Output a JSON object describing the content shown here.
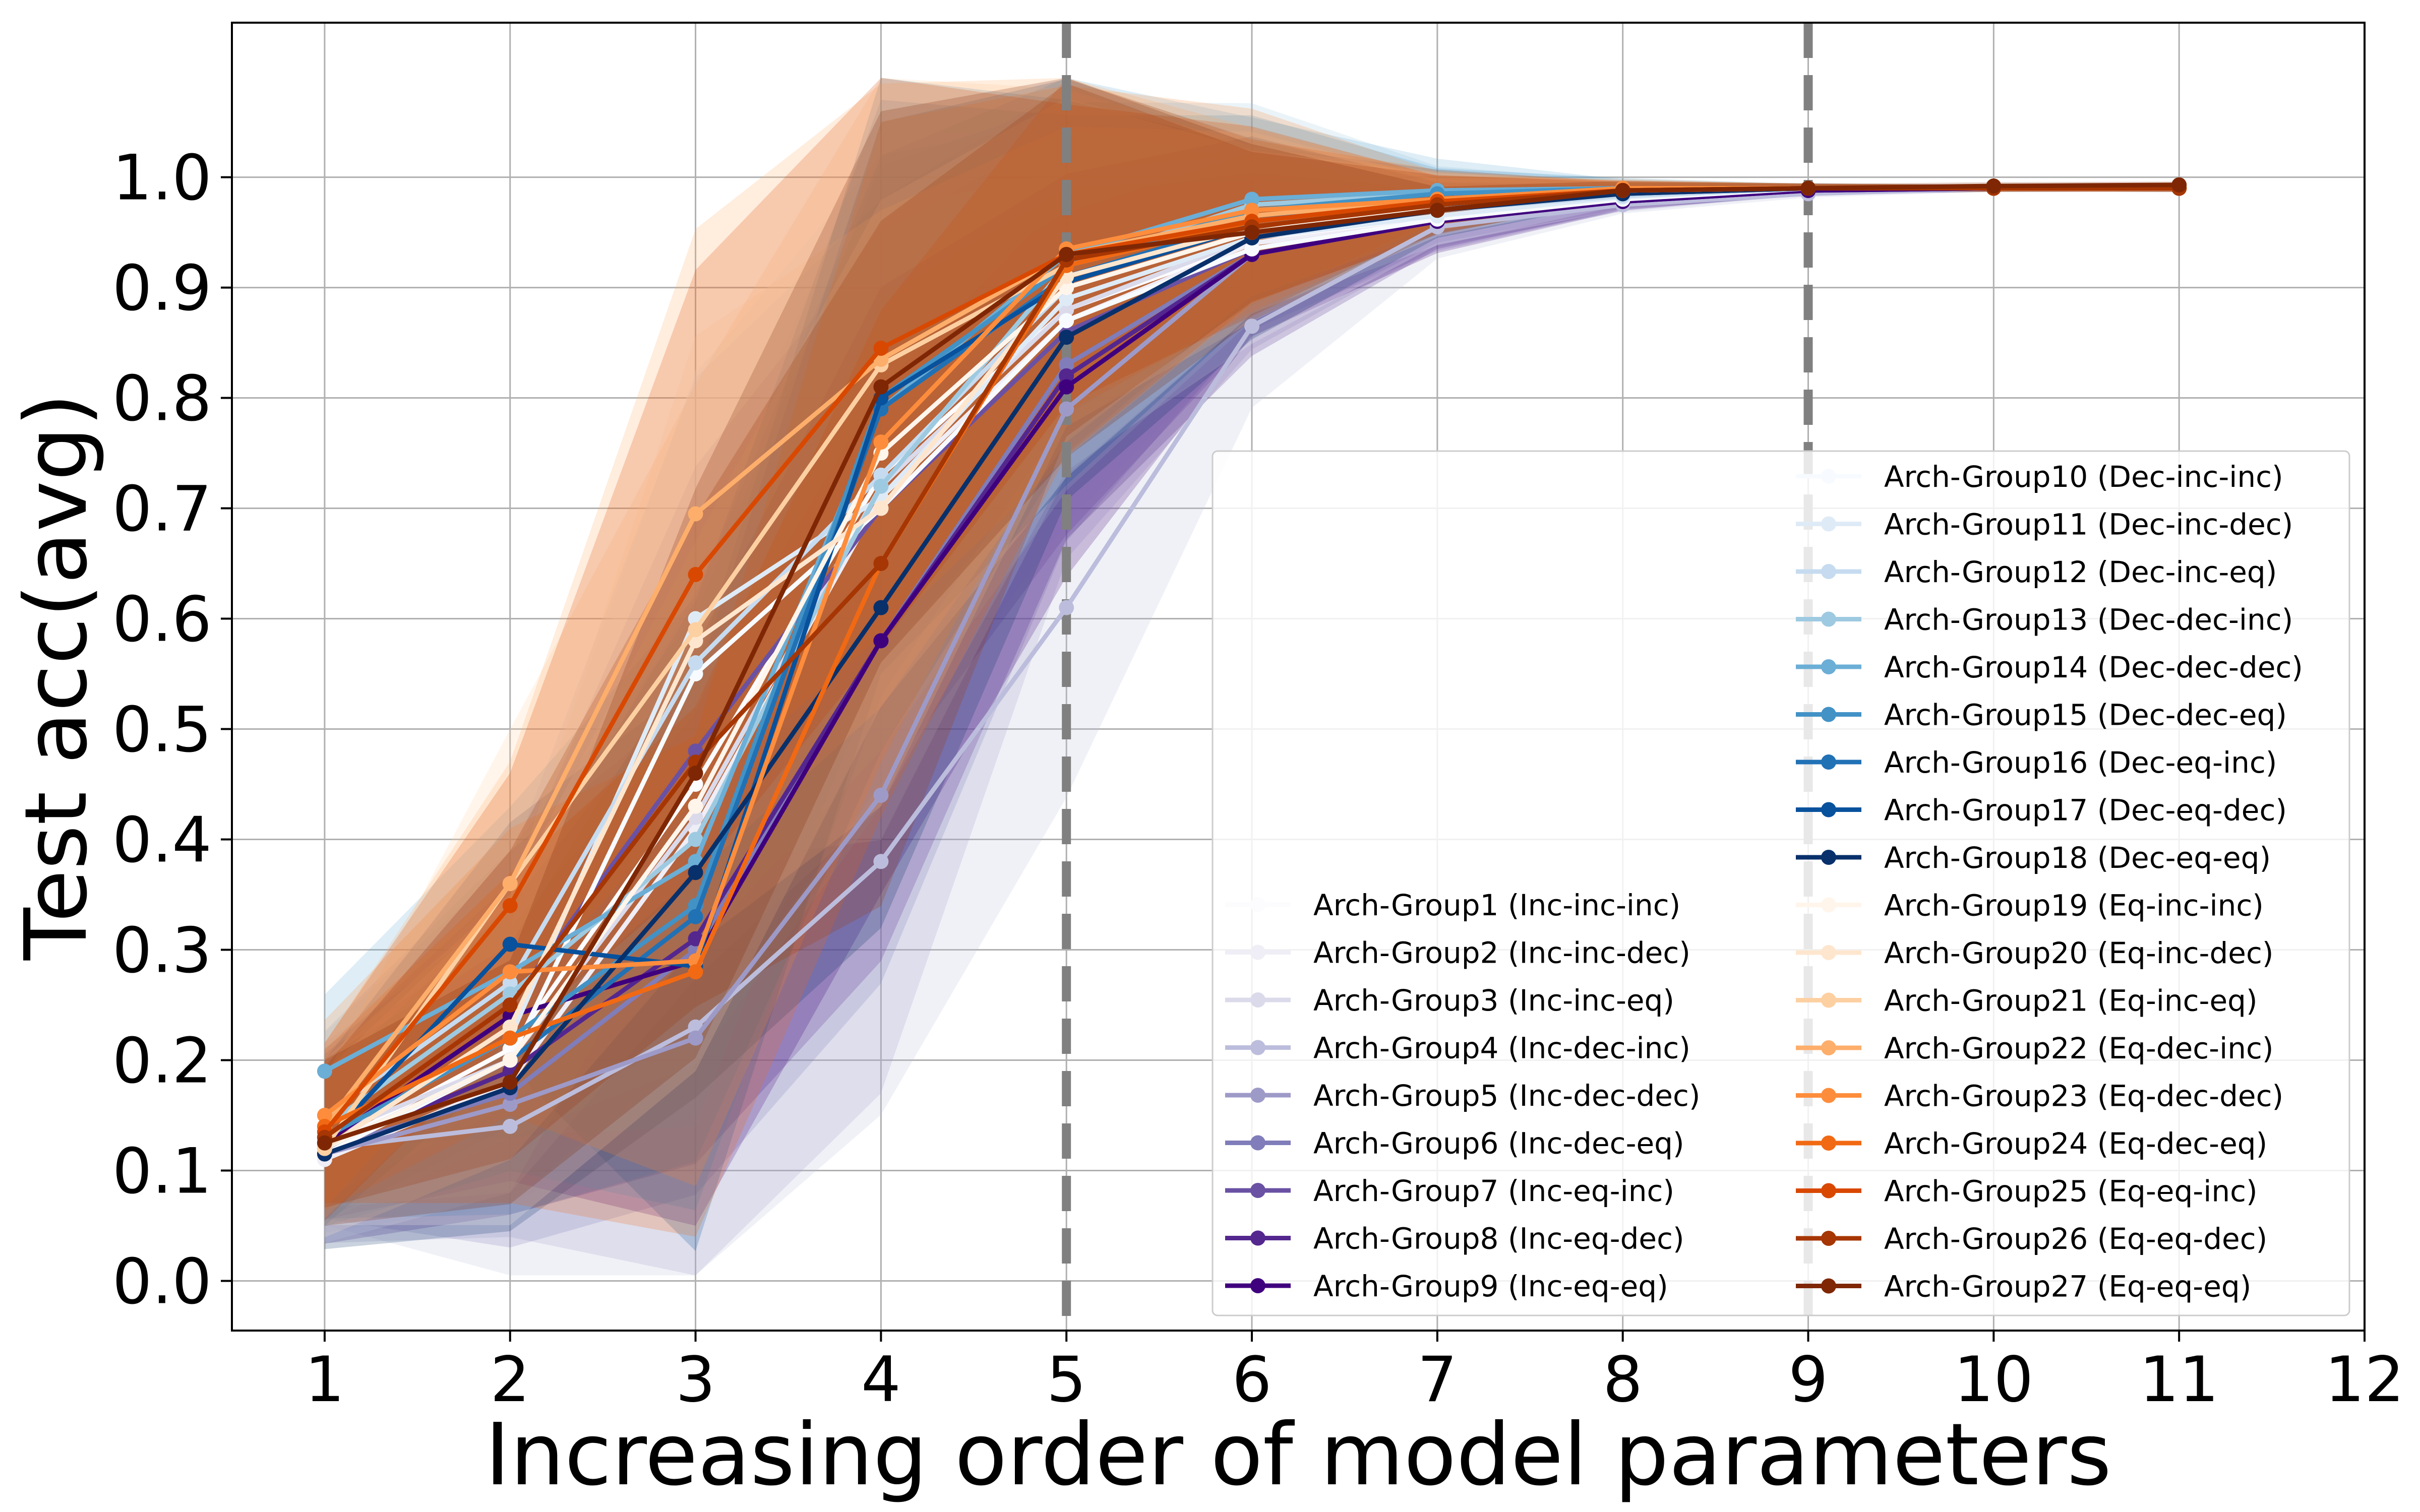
{
  "chart_data": {
    "type": "line",
    "title": "",
    "xlabel": "Increasing order of model parameters",
    "ylabel": "Test acc(avg)",
    "xlim": [
      0.5,
      12
    ],
    "ylim": [
      -0.045,
      1.14
    ],
    "xticks": [
      "1",
      "2",
      "3",
      "4",
      "5",
      "6",
      "7",
      "8",
      "9",
      "10",
      "11",
      "12"
    ],
    "yticks": [
      "0.0",
      "0.1",
      "0.2",
      "0.3",
      "0.4",
      "0.5",
      "0.6",
      "0.7",
      "0.8",
      "0.9",
      "1.0"
    ],
    "grid": true,
    "vlines": [
      5,
      9
    ],
    "legend_position": "lower-right",
    "x": [
      1,
      2,
      3,
      4,
      5,
      6,
      7,
      8,
      9,
      10,
      11
    ],
    "series": [
      {
        "name": "Arch-Group1 (Inc-inc-inc)",
        "color": "#fcfbfd",
        "values": [
          0.12,
          0.21,
          0.45,
          0.73,
          0.88,
          0.94,
          0.965,
          0.98,
          0.99,
          0.99,
          0.99
        ]
      },
      {
        "name": "Arch-Group2 (Inc-inc-dec)",
        "color": "#efedf5",
        "values": [
          0.11,
          0.18,
          0.41,
          0.71,
          0.87,
          0.94,
          0.96,
          0.978,
          0.988,
          0.99,
          0.99
        ]
      },
      {
        "name": "Arch-Group3 (Inc-inc-eq)",
        "color": "#dadaeb",
        "values": [
          0.13,
          0.2,
          0.42,
          0.72,
          0.88,
          0.945,
          0.965,
          0.98,
          0.99,
          0.99,
          0.99
        ]
      },
      {
        "name": "Arch-Group4 (Inc-dec-inc)",
        "color": "#bcbddc",
        "values": [
          0.12,
          0.14,
          0.23,
          0.38,
          0.61,
          0.865,
          0.955,
          0.975,
          0.985,
          0.99,
          0.99
        ]
      },
      {
        "name": "Arch-Group5 (Inc-dec-dec)",
        "color": "#9e9ac8",
        "values": [
          0.115,
          0.16,
          0.22,
          0.44,
          0.79,
          0.93,
          0.96,
          0.978,
          0.988,
          0.99,
          0.99
        ]
      },
      {
        "name": "Arch-Group6 (Inc-dec-eq)",
        "color": "#807dba",
        "values": [
          0.12,
          0.17,
          0.3,
          0.58,
          0.83,
          0.93,
          0.96,
          0.978,
          0.988,
          0.99,
          0.99
        ]
      },
      {
        "name": "Arch-Group7 (Inc-eq-inc)",
        "color": "#6a51a3",
        "values": [
          0.13,
          0.25,
          0.48,
          0.7,
          0.86,
          0.935,
          0.962,
          0.98,
          0.99,
          0.99,
          0.99
        ]
      },
      {
        "name": "Arch-Group8 (Inc-eq-dec)",
        "color": "#54278f",
        "values": [
          0.12,
          0.19,
          0.31,
          0.58,
          0.82,
          0.93,
          0.96,
          0.978,
          0.988,
          0.99,
          0.99
        ]
      },
      {
        "name": "Arch-Group9 (Inc-eq-eq)",
        "color": "#3f007d",
        "values": [
          0.125,
          0.24,
          0.29,
          0.58,
          0.81,
          0.93,
          0.96,
          0.978,
          0.988,
          0.99,
          0.99
        ]
      },
      {
        "name": "Arch-Group10 (Dec-inc-inc)",
        "color": "#f7fbff",
        "values": [
          0.115,
          0.2,
          0.55,
          0.7,
          0.87,
          0.935,
          0.962,
          0.98,
          0.99,
          0.99,
          0.99
        ]
      },
      {
        "name": "Arch-Group11 (Dec-inc-dec)",
        "color": "#deebf7",
        "values": [
          0.13,
          0.22,
          0.6,
          0.71,
          0.89,
          0.945,
          0.965,
          0.982,
          0.99,
          0.99,
          0.99
        ]
      },
      {
        "name": "Arch-Group12 (Dec-inc-eq)",
        "color": "#c6dbef",
        "values": [
          0.15,
          0.27,
          0.56,
          0.73,
          0.9,
          0.95,
          0.97,
          0.983,
          0.99,
          0.99,
          0.99
        ]
      },
      {
        "name": "Arch-Group13 (Dec-dec-inc)",
        "color": "#9ecae1",
        "values": [
          0.14,
          0.26,
          0.4,
          0.72,
          0.92,
          0.975,
          0.985,
          0.99,
          0.99,
          0.99,
          0.99
        ]
      },
      {
        "name": "Arch-Group14 (Dec-dec-dec)",
        "color": "#6baed6",
        "values": [
          0.19,
          0.28,
          0.38,
          0.79,
          0.93,
          0.98,
          0.988,
          0.99,
          0.99,
          0.99,
          0.99
        ]
      },
      {
        "name": "Arch-Group15 (Dec-dec-eq)",
        "color": "#4292c6",
        "values": [
          0.13,
          0.22,
          0.34,
          0.8,
          0.92,
          0.97,
          0.985,
          0.99,
          0.99,
          0.99,
          0.99
        ]
      },
      {
        "name": "Arch-Group16 (Dec-eq-inc)",
        "color": "#2171b5",
        "values": [
          0.12,
          0.2,
          0.33,
          0.79,
          0.91,
          0.96,
          0.98,
          0.988,
          0.99,
          0.99,
          0.99
        ]
      },
      {
        "name": "Arch-Group17 (Dec-eq-dec)",
        "color": "#08519c",
        "values": [
          0.125,
          0.305,
          0.285,
          0.8,
          0.905,
          0.955,
          0.975,
          0.985,
          0.99,
          0.99,
          0.99
        ]
      },
      {
        "name": "Arch-Group18 (Dec-eq-eq)",
        "color": "#08306b",
        "values": [
          0.115,
          0.175,
          0.37,
          0.61,
          0.855,
          0.945,
          0.97,
          0.985,
          0.99,
          0.99,
          0.99
        ]
      },
      {
        "name": "Arch-Group19 (Eq-inc-inc)",
        "color": "#fff5eb",
        "values": [
          0.12,
          0.2,
          0.43,
          0.75,
          0.9,
          0.95,
          0.975,
          0.988,
          0.99,
          0.99,
          0.99
        ]
      },
      {
        "name": "Arch-Group20 (Eq-inc-dec)",
        "color": "#fee6ce",
        "values": [
          0.12,
          0.23,
          0.58,
          0.7,
          0.91,
          0.955,
          0.975,
          0.988,
          0.99,
          0.99,
          0.99
        ]
      },
      {
        "name": "Arch-Group21 (Eq-inc-eq)",
        "color": "#fdd0a2",
        "values": [
          0.12,
          0.36,
          0.59,
          0.83,
          0.92,
          0.96,
          0.978,
          0.988,
          0.99,
          0.99,
          0.99
        ]
      },
      {
        "name": "Arch-Group22 (Eq-dec-inc)",
        "color": "#fdae6b",
        "values": [
          0.14,
          0.36,
          0.695,
          0.835,
          0.93,
          0.965,
          0.98,
          0.99,
          0.99,
          0.99,
          0.99
        ]
      },
      {
        "name": "Arch-Group23 (Eq-dec-dec)",
        "color": "#fd8d3c",
        "values": [
          0.15,
          0.28,
          0.29,
          0.76,
          0.935,
          0.97,
          0.98,
          0.99,
          0.99,
          0.99,
          0.99
        ]
      },
      {
        "name": "Arch-Group24 (Eq-dec-eq)",
        "color": "#f16913",
        "values": [
          0.14,
          0.22,
          0.28,
          0.65,
          0.92,
          0.96,
          0.978,
          0.988,
          0.99,
          0.99,
          0.99
        ]
      },
      {
        "name": "Arch-Group25 (Eq-eq-inc)",
        "color": "#d94801",
        "values": [
          0.135,
          0.34,
          0.64,
          0.845,
          0.93,
          0.96,
          0.978,
          0.988,
          0.99,
          0.99,
          0.99
        ]
      },
      {
        "name": "Arch-Group26 (Eq-eq-dec)",
        "color": "#a63603",
        "values": [
          0.13,
          0.25,
          0.47,
          0.65,
          0.925,
          0.955,
          0.975,
          0.988,
          0.99,
          0.99,
          0.99
        ]
      },
      {
        "name": "Arch-Group27 (Eq-eq-eq)",
        "color": "#7f2704",
        "values": [
          0.125,
          0.18,
          0.46,
          0.81,
          0.93,
          0.95,
          0.97,
          0.988,
          0.99,
          0.992,
          0.993
        ]
      }
    ]
  }
}
